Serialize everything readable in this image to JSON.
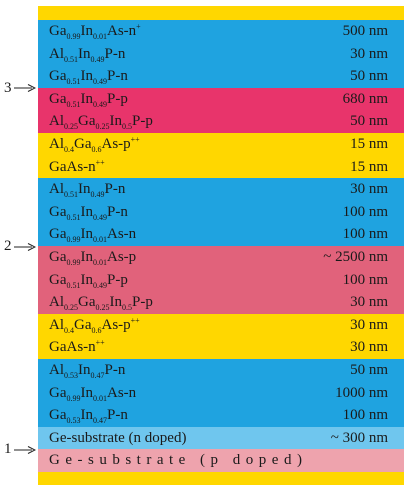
{
  "layers": [
    {
      "label": [
        {
          "text": "Ga"
        },
        {
          "sub": "0.99"
        },
        {
          "text": "In"
        },
        {
          "sub": "0.01"
        },
        {
          "text": "As-n"
        },
        {
          "sup": "+"
        }
      ],
      "thickness": "500 nm",
      "color": "#1fa3e0"
    },
    {
      "label": [
        {
          "text": "Al"
        },
        {
          "sub": "0.51"
        },
        {
          "text": "In"
        },
        {
          "sub": "0.49"
        },
        {
          "text": "P-n"
        }
      ],
      "thickness": "30 nm",
      "color": "#1fa3e0"
    },
    {
      "label": [
        {
          "text": "Ga"
        },
        {
          "sub": "0.51"
        },
        {
          "text": "In"
        },
        {
          "sub": "0.49"
        },
        {
          "text": "P-n"
        }
      ],
      "thickness": "50 nm",
      "color": "#1fa3e0"
    },
    {
      "label": [
        {
          "text": "Ga"
        },
        {
          "sub": "0.51"
        },
        {
          "text": "In"
        },
        {
          "sub": "0.49"
        },
        {
          "text": "P-p"
        }
      ],
      "thickness": "680 nm",
      "color": "#e8346b",
      "marker": "3"
    },
    {
      "label": [
        {
          "text": "Al"
        },
        {
          "sub": "0.25"
        },
        {
          "text": "Ga"
        },
        {
          "sub": "0.25"
        },
        {
          "text": "In"
        },
        {
          "sub": "0.5"
        },
        {
          "text": "P-p"
        }
      ],
      "thickness": "50 nm",
      "color": "#e8346b"
    },
    {
      "label": [
        {
          "text": "Al"
        },
        {
          "sub": "0.4"
        },
        {
          "text": "Ga"
        },
        {
          "sub": "0.6"
        },
        {
          "text": "As-p"
        },
        {
          "sup": "++"
        }
      ],
      "thickness": "15 nm",
      "color": "#ffd700"
    },
    {
      "label": [
        {
          "text": "GaAs-n"
        },
        {
          "sup": "++"
        }
      ],
      "thickness": "15 nm",
      "color": "#ffd700"
    },
    {
      "label": [
        {
          "text": "Al"
        },
        {
          "sub": "0.51"
        },
        {
          "text": "In"
        },
        {
          "sub": "0.49"
        },
        {
          "text": "P-n"
        }
      ],
      "thickness": "30 nm",
      "color": "#1fa3e0"
    },
    {
      "label": [
        {
          "text": "Ga"
        },
        {
          "sub": "0.51"
        },
        {
          "text": "In"
        },
        {
          "sub": "0.49"
        },
        {
          "text": "P-n"
        }
      ],
      "thickness": "100 nm",
      "color": "#1fa3e0"
    },
    {
      "label": [
        {
          "text": "Ga"
        },
        {
          "sub": "0.99"
        },
        {
          "text": "In"
        },
        {
          "sub": "0.01"
        },
        {
          "text": "As-n"
        }
      ],
      "thickness": "100 nm",
      "color": "#1fa3e0"
    },
    {
      "label": [
        {
          "text": "Ga"
        },
        {
          "sub": "0.99"
        },
        {
          "text": "In"
        },
        {
          "sub": "0.01"
        },
        {
          "text": "As-p"
        }
      ],
      "thickness": "~ 2500 nm",
      "color": "#e1627b",
      "marker": "2"
    },
    {
      "label": [
        {
          "text": "Ga"
        },
        {
          "sub": "0.51"
        },
        {
          "text": "In"
        },
        {
          "sub": "0.49"
        },
        {
          "text": "P-p"
        }
      ],
      "thickness": "100 nm",
      "color": "#e1627b"
    },
    {
      "label": [
        {
          "text": "Al"
        },
        {
          "sub": "0.25"
        },
        {
          "text": "Ga"
        },
        {
          "sub": "0.25"
        },
        {
          "text": "In"
        },
        {
          "sub": "0.5"
        },
        {
          "text": "P-p"
        }
      ],
      "thickness": "30 nm",
      "color": "#e1627b"
    },
    {
      "label": [
        {
          "text": "Al"
        },
        {
          "sub": "0.4"
        },
        {
          "text": "Ga"
        },
        {
          "sub": "0.6"
        },
        {
          "text": "As-p"
        },
        {
          "sup": "++"
        }
      ],
      "thickness": "30 nm",
      "color": "#ffd700"
    },
    {
      "label": [
        {
          "text": "GaAs-n"
        },
        {
          "sup": "++"
        }
      ],
      "thickness": "30 nm",
      "color": "#ffd700"
    },
    {
      "label": [
        {
          "text": "Al"
        },
        {
          "sub": "0.53"
        },
        {
          "text": "In"
        },
        {
          "sub": "0.47"
        },
        {
          "text": "P-n"
        }
      ],
      "thickness": "50 nm",
      "color": "#1fa3e0"
    },
    {
      "label": [
        {
          "text": "Ga"
        },
        {
          "sub": "0.99"
        },
        {
          "text": "In"
        },
        {
          "sub": "0.01"
        },
        {
          "text": "As-n"
        }
      ],
      "thickness": "1000 nm",
      "color": "#1fa3e0"
    },
    {
      "label": [
        {
          "text": "Ga"
        },
        {
          "sub": "0.53"
        },
        {
          "text": "In"
        },
        {
          "sub": "0.47"
        },
        {
          "text": "P-n"
        }
      ],
      "thickness": "100 nm",
      "color": "#1fa3e0"
    },
    {
      "label": [
        {
          "text": "Ge-substrate (n doped)"
        }
      ],
      "thickness": "~ 300 nm",
      "color": "#6fc6ee"
    },
    {
      "label": [
        {
          "text": "Ge-substrate (p doped)"
        }
      ],
      "color": "#eea3ad",
      "marker": "1",
      "spaced": true
    }
  ]
}
